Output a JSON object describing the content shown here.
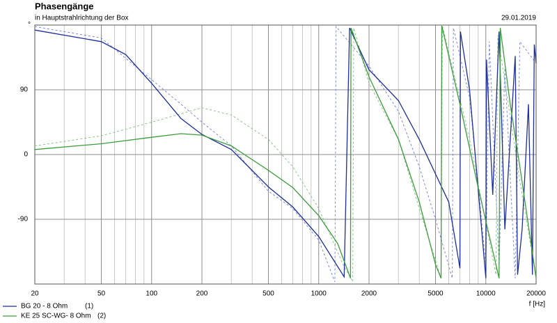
{
  "chart_data": {
    "type": "line",
    "title": "Phasengänge",
    "subtitle": "in Hauptstrahlrichtung der Box",
    "date": "29.01.2019",
    "x_label": "f [Hz]",
    "log_x": true,
    "grid": true,
    "xlim": [
      20,
      20000
    ],
    "xticks": [
      20,
      50,
      100,
      200,
      500,
      1000,
      2000,
      5000,
      10000,
      20000
    ],
    "xticks_minor": [
      30,
      40,
      60,
      70,
      80,
      90,
      300,
      400,
      600,
      700,
      800,
      900,
      3000,
      4000,
      6000,
      7000,
      8000,
      9000
    ],
    "ylim": [
      -180,
      180
    ],
    "yticks": [
      -90,
      0,
      90,
      {
        "value": 180,
        "label": "°"
      }
    ],
    "series": [
      {
        "name": "BG 20 - 8 Ohm",
        "number_label": "(1)",
        "color": "#1c2c9c",
        "dashed": false,
        "x": [
          20,
          50,
          70,
          100,
          150,
          200,
          300,
          500,
          700,
          1000,
          1420,
          1530,
          2000,
          3000,
          4000,
          5000,
          6000,
          7000,
          7050,
          8000,
          10000,
          10100,
          11000,
          12000,
          13000,
          15000,
          15500,
          16500,
          18000,
          19000,
          19500,
          20000
        ],
        "values": [
          173,
          157,
          139,
          99,
          50,
          28,
          7,
          -45,
          -73,
          -114,
          -170,
          176,
          118,
          75,
          21,
          -27,
          -66,
          -158,
          171,
          89,
          -172,
          132,
          -56,
          171,
          -104,
          137,
          -167,
          -104,
          70,
          -167,
          153,
          127
        ]
      },
      {
        "name": "KE 25 SC-WG- 8 Ohm",
        "number_label": "(2)",
        "color": "#3c9c3c",
        "dashed": false,
        "x": [
          20,
          50,
          100,
          150,
          200,
          300,
          500,
          700,
          1000,
          1300,
          1550,
          1560,
          2000,
          3000,
          4000,
          5000,
          5400,
          5450,
          7000,
          9000,
          11000,
          12000,
          12200,
          14000,
          16000,
          20000
        ],
        "values": [
          7,
          15,
          24,
          29,
          27,
          12,
          -22,
          -46,
          -85,
          -124,
          -172,
          176,
          108,
          21,
          -66,
          -153,
          -172,
          179,
          70,
          -46,
          -134,
          -172,
          176,
          70,
          -17,
          -172
        ]
      },
      {
        "color": "#7888e4",
        "dashed": true,
        "x": [
          20,
          50,
          100,
          150,
          200,
          300,
          500,
          700,
          1000,
          1250,
          1270,
          2000,
          3000,
          4000,
          5000,
          6300,
          6400,
          8000,
          10000,
          10500,
          12000,
          13000,
          15000,
          16000,
          20000
        ],
        "values": [
          178,
          162,
          104,
          70,
          45,
          12,
          -51,
          -75,
          -119,
          -177,
          178,
          123,
          60,
          -17,
          -90,
          -172,
          176,
          79,
          -153,
          157,
          -153,
          120,
          -172,
          157,
          127
        ]
      },
      {
        "color": "#88c488",
        "dashed": true,
        "x": [
          20,
          50,
          100,
          200,
          300,
          500,
          700,
          1000,
          1400,
          1600,
          1620,
          2000,
          3000,
          4000,
          5400,
          5500,
          8000,
          11500,
          11800,
          16000,
          20000
        ],
        "values": [
          12,
          26,
          45,
          65,
          55,
          21,
          -17,
          -75,
          -153,
          -177,
          176,
          99,
          21,
          -75,
          -172,
          179,
          21,
          -167,
          166,
          -37,
          -172
        ]
      }
    ]
  }
}
